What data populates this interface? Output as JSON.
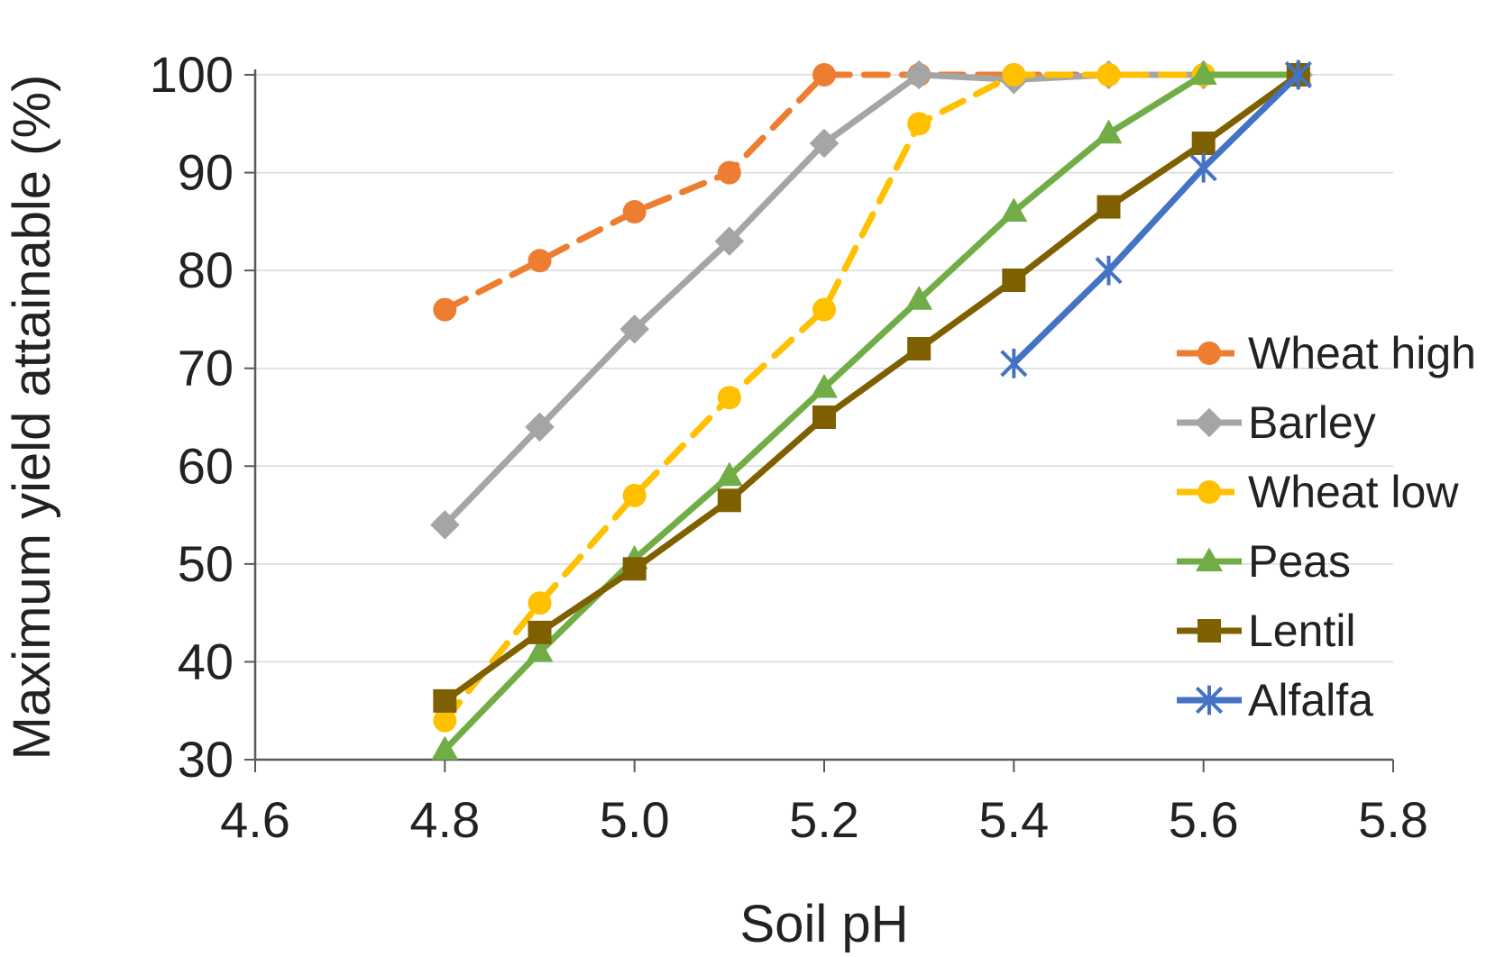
{
  "chart_data": {
    "type": "line",
    "title": "",
    "xlabel": "Soil pH",
    "ylabel": "Maximum yield attainable (%)",
    "xlim": [
      4.6,
      5.8
    ],
    "ylim": [
      30,
      100
    ],
    "xticks": [
      "4.6",
      "4.8",
      "5.0",
      "5.2",
      "5.4",
      "5.6",
      "5.8"
    ],
    "yticks": [
      "30",
      "40",
      "50",
      "60",
      "70",
      "80",
      "90",
      "100"
    ],
    "grid": "horizontal",
    "legend_position": "right",
    "series": [
      {
        "name": "Wheat high",
        "color": "#ED7D31",
        "dashed": true,
        "marker": "circle",
        "x": [
          4.8,
          4.9,
          5.0,
          5.1,
          5.2,
          5.3,
          5.4,
          5.5,
          5.6,
          5.7
        ],
        "y": [
          76,
          81,
          86,
          90,
          100,
          100,
          100,
          100,
          100,
          100
        ]
      },
      {
        "name": "Barley",
        "color": "#A5A5A5",
        "dashed": false,
        "marker": "diamond",
        "x": [
          4.8,
          4.9,
          5.0,
          5.1,
          5.2,
          5.3,
          5.4,
          5.5,
          5.6,
          5.7
        ],
        "y": [
          54,
          64,
          74,
          83,
          93,
          100,
          99.5,
          100,
          100,
          100
        ]
      },
      {
        "name": "Wheat low",
        "color": "#FFC000",
        "dashed": true,
        "marker": "circle",
        "x": [
          4.8,
          4.9,
          5.0,
          5.1,
          5.2,
          5.3,
          5.4,
          5.5,
          5.6,
          5.7
        ],
        "y": [
          34,
          46,
          57,
          67,
          76,
          95,
          100,
          100,
          100,
          100
        ]
      },
      {
        "name": "Peas",
        "color": "#70AD47",
        "dashed": false,
        "marker": "triangle",
        "x": [
          4.8,
          4.9,
          5.0,
          5.1,
          5.2,
          5.3,
          5.4,
          5.5,
          5.6,
          5.7
        ],
        "y": [
          31,
          41,
          50.5,
          59,
          68,
          77,
          86,
          94,
          100,
          100
        ]
      },
      {
        "name": "Lentil",
        "color": "#7F6000",
        "dashed": false,
        "marker": "square",
        "x": [
          4.8,
          4.9,
          5.0,
          5.1,
          5.2,
          5.3,
          5.4,
          5.5,
          5.6,
          5.7
        ],
        "y": [
          36,
          43,
          49.5,
          56.5,
          65,
          72,
          79,
          86.5,
          93,
          100
        ]
      },
      {
        "name": "Alfalfa",
        "color": "#4472C4",
        "dashed": false,
        "marker": "asterisk",
        "x": [
          5.4,
          5.5,
          5.6,
          5.7
        ],
        "y": [
          70.5,
          80,
          90.5,
          100
        ]
      }
    ]
  }
}
